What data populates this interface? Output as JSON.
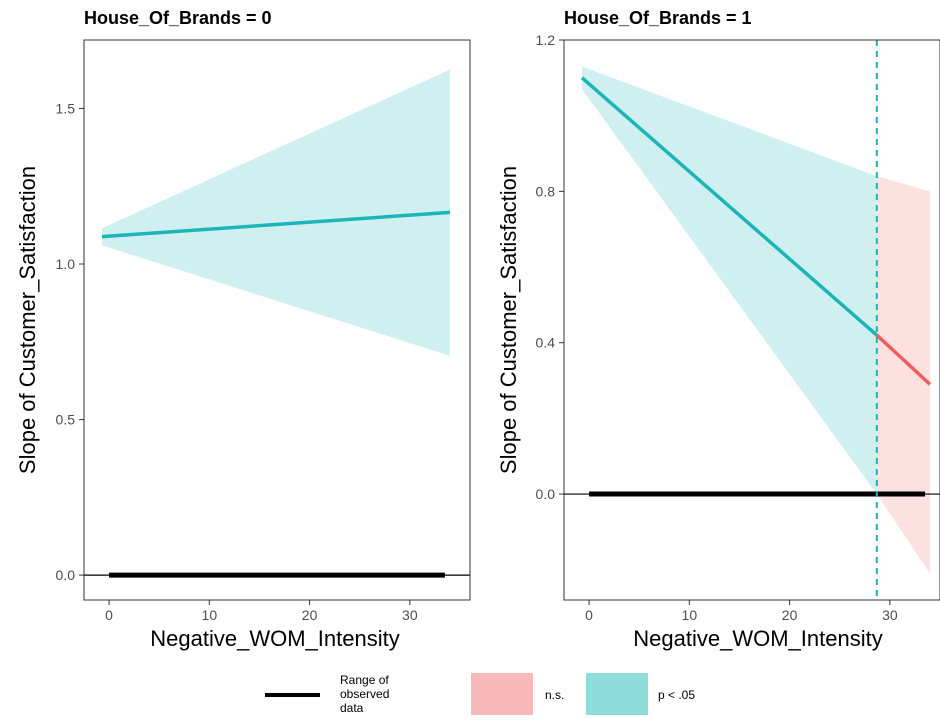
{
  "chart_data": [
    {
      "type": "line",
      "title": "House_Of_Brands = 0",
      "xlabel": "Negative_WOM_Intensity",
      "ylabel": "Slope of Customer_Satisfaction",
      "xlim": [
        -2.5,
        36
      ],
      "ylim": [
        -0.08,
        1.72
      ],
      "xticks": [
        0,
        10,
        20,
        30
      ],
      "xtick_labels": [
        "0",
        "10",
        "20",
        "30"
      ],
      "yticks": [
        0,
        0.5,
        1,
        1.5
      ],
      "ytick_labels": [
        "0.0",
        "0.5",
        "1.0",
        "1.5"
      ],
      "grid": false,
      "series": [
        {
          "name": "p < .05",
          "color": "#1ab5b9",
          "x": [
            -0.7,
            34
          ],
          "y": [
            1.088,
            1.166
          ],
          "ci_lower": [
            1.06,
            0.705
          ],
          "ci_upper": [
            1.115,
            1.625
          ]
        }
      ],
      "reference_line_y": 0,
      "observed_range": [
        0,
        33.5
      ],
      "significance_threshold": null
    },
    {
      "type": "line",
      "title": "House_Of_Brands = 1",
      "xlabel": "Negative_WOM_Intensity",
      "ylabel": "Slope of Customer_Satisfaction",
      "xlim": [
        -2.5,
        35
      ],
      "ylim": [
        -0.28,
        1.2
      ],
      "xticks": [
        0,
        10,
        20,
        30
      ],
      "xtick_labels": [
        "0",
        "10",
        "20",
        "30"
      ],
      "yticks": [
        0,
        0.4,
        0.8,
        1.2
      ],
      "ytick_labels": [
        "0.0",
        "0.4",
        "0.8",
        "1.2"
      ],
      "grid": false,
      "series": [
        {
          "name": "p < .05",
          "color": "#1ab5b9",
          "x": [
            -0.7,
            28.7
          ],
          "y": [
            1.1,
            0.42
          ],
          "ci_lower": [
            1.07,
            0.0
          ],
          "ci_upper": [
            1.13,
            0.84
          ]
        },
        {
          "name": "n.s.",
          "color": "#f05d5e",
          "x": [
            28.7,
            34
          ],
          "y": [
            0.42,
            0.29
          ],
          "ci_lower": [
            0.0,
            -0.21
          ],
          "ci_upper": [
            0.84,
            0.8
          ]
        }
      ],
      "reference_line_y": 0,
      "observed_range": [
        0,
        33.5
      ],
      "significance_threshold": 28.7
    }
  ],
  "legend": {
    "items": [
      {
        "label_lines": [
          "Range of",
          "observed",
          "data"
        ],
        "kind": "line",
        "color": "#000000"
      },
      {
        "label_lines": [
          "n.s."
        ],
        "kind": "fill",
        "color": "#f9b9b9"
      },
      {
        "label_lines": [
          "p < .05"
        ],
        "kind": "fill",
        "color": "#8fdcdd"
      }
    ]
  },
  "colors": {
    "significant_line": "#1ab5b9",
    "significant_fill": "#cfeff1",
    "ns_line": "#f05d5e",
    "ns_fill": "#fde0e0",
    "threshold_line": "#1ab5b9"
  }
}
